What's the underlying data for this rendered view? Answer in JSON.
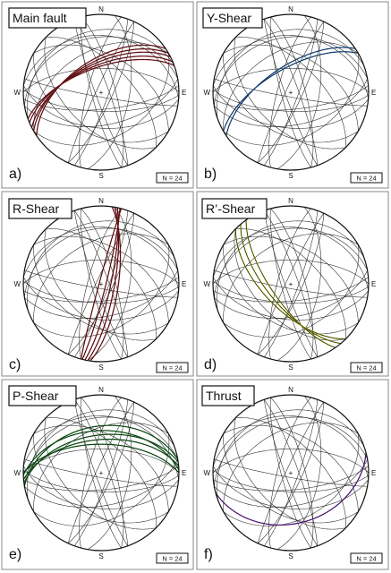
{
  "panels": [
    {
      "title": "Main fault",
      "letter": "a)",
      "n_label": "N = 24",
      "color": "#b01c24",
      "dirs": {
        "n": "N",
        "s": "S",
        "e": "E",
        "w": "W"
      }
    },
    {
      "title": "Y-Shear",
      "letter": "b)",
      "n_label": "N = 24",
      "color": "#2c78c8",
      "dirs": {
        "n": "N",
        "s": "S",
        "e": "E",
        "w": "W"
      }
    },
    {
      "title": "R-Shear",
      "letter": "c)",
      "n_label": "N = 24",
      "color": "#b01c24",
      "dirs": {
        "n": "N",
        "s": "S",
        "e": "E",
        "w": "W"
      }
    },
    {
      "title": "R’-Shear",
      "letter": "d)",
      "n_label": "N = 24",
      "color": "#b8c41a",
      "dirs": {
        "n": "N",
        "s": "S",
        "e": "E",
        "w": "W"
      }
    },
    {
      "title": "P-Shear",
      "letter": "e)",
      "n_label": "N = 24",
      "color": "#1f8a2a",
      "dirs": {
        "n": "N",
        "s": "S",
        "e": "E",
        "w": "W"
      }
    },
    {
      "title": "Thrust",
      "letter": "f)",
      "n_label": "N = 24",
      "color": "#8a2ad6",
      "dirs": {
        "n": "N",
        "s": "S",
        "e": "E",
        "w": "W"
      }
    }
  ],
  "background_planes": [
    {
      "strike": 85,
      "dip": 72
    },
    {
      "strike": 92,
      "dip": 70
    },
    {
      "strike": 260,
      "dip": 30
    },
    {
      "strike": 275,
      "dip": 28
    },
    {
      "strike": 80,
      "dip": 55
    },
    {
      "strike": 95,
      "dip": 52
    },
    {
      "strike": 250,
      "dip": 22
    },
    {
      "strike": 20,
      "dip": 82
    },
    {
      "strike": 160,
      "dip": 84
    },
    {
      "strike": 165,
      "dip": 80
    },
    {
      "strike": 195,
      "dip": 76
    },
    {
      "strike": 340,
      "dip": 82
    },
    {
      "strike": 345,
      "dip": 75
    },
    {
      "strike": 25,
      "dip": 78
    },
    {
      "strike": 205,
      "dip": 85
    },
    {
      "strike": 135,
      "dip": 52
    },
    {
      "strike": 315,
      "dip": 60
    },
    {
      "strike": 300,
      "dip": 50
    },
    {
      "strike": 120,
      "dip": 45
    },
    {
      "strike": 270,
      "dip": 65
    },
    {
      "strike": 60,
      "dip": 40
    },
    {
      "strike": 240,
      "dip": 45
    },
    {
      "strike": 100,
      "dip": 85
    },
    {
      "strike": 10,
      "dip": 60
    }
  ],
  "highlighted_planes": [
    [
      {
        "strike": 247,
        "dip": 62
      },
      {
        "strike": 243,
        "dip": 60
      },
      {
        "strike": 240,
        "dip": 58
      },
      {
        "strike": 250,
        "dip": 64
      },
      {
        "strike": 236,
        "dip": 56
      }
    ],
    [
      {
        "strike": 240,
        "dip": 65
      },
      {
        "strike": 236,
        "dip": 63
      }
    ],
    [
      {
        "strike": 12,
        "dip": 80
      },
      {
        "strike": 10,
        "dip": 76
      },
      {
        "strike": 8,
        "dip": 72
      },
      {
        "strike": 14,
        "dip": 85
      },
      {
        "strike": 195,
        "dip": 88
      }
    ],
    [
      {
        "strike": 135,
        "dip": 62
      },
      {
        "strike": 140,
        "dip": 66
      },
      {
        "strike": 145,
        "dip": 70
      }
    ],
    [
      {
        "strike": 265,
        "dip": 55
      },
      {
        "strike": 262,
        "dip": 50
      },
      {
        "strike": 268,
        "dip": 45
      },
      {
        "strike": 270,
        "dip": 60
      },
      {
        "strike": 260,
        "dip": 40
      }
    ],
    [
      {
        "strike": 75,
        "dip": 35
      }
    ]
  ]
}
